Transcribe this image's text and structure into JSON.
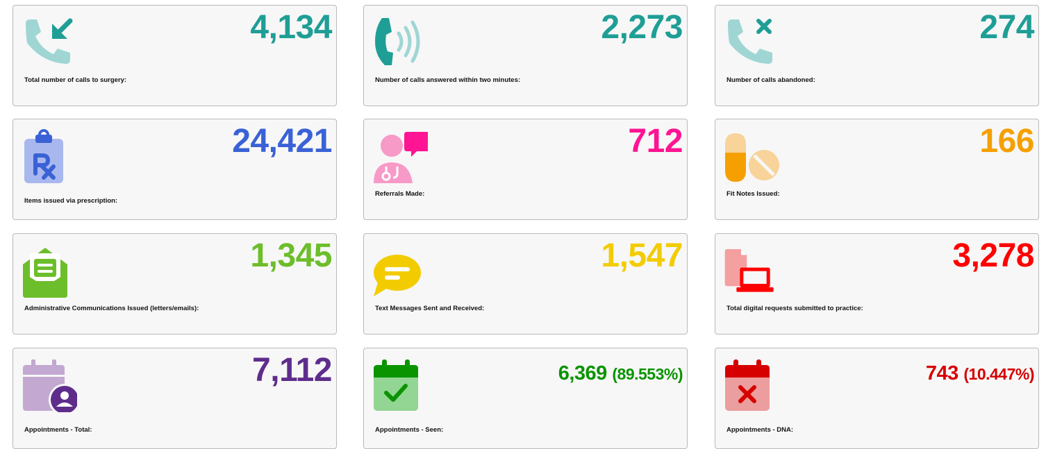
{
  "colors": {
    "teal": "#1f9e96",
    "teal_light": "#9fd6d4",
    "blue": "#3a62d6",
    "blue_light": "#a8b8ee",
    "pink": "#ff1493",
    "pink_light": "#f79ac8",
    "orange": "#f5a000",
    "orange_light": "#f8d39a",
    "green": "#6cbe2a",
    "yellow": "#f2cc00",
    "red": "#ff0000",
    "red_light": "#f4a0a0",
    "purple": "#5e2d8c",
    "purple_light": "#c3a8d1",
    "dark_green": "#0a9400",
    "dark_green_light": "#93d593",
    "dark_red": "#d60000",
    "dark_red_light": "#ec9d9d"
  },
  "cards": [
    {
      "id": "calls-total",
      "icon": "incoming-call-icon",
      "value": "4,134",
      "label": "Total number of calls to surgery:"
    },
    {
      "id": "calls-answered",
      "icon": "phone-ringing-icon",
      "value": "2,273",
      "label": "Number of calls answered within two minutes:"
    },
    {
      "id": "calls-abandoned",
      "icon": "call-abandoned-icon",
      "value": "274",
      "label": "Number of calls abandoned:"
    },
    {
      "id": "prescriptions",
      "icon": "prescription-clipboard-icon",
      "value": "24,421",
      "label": "Items issued via prescription:"
    },
    {
      "id": "referrals",
      "icon": "doctor-chat-icon",
      "value": "712",
      "label": "Referrals Made:"
    },
    {
      "id": "fit-notes",
      "icon": "pills-icon",
      "value": "166",
      "label": "Fit Notes Issued:"
    },
    {
      "id": "admin-comms",
      "icon": "envelope-letter-icon",
      "value": "1,345",
      "label": "Administrative Communications Issued (letters/emails):"
    },
    {
      "id": "text-messages",
      "icon": "speech-bubble-icon",
      "value": "1,547",
      "label": "Text Messages Sent and Received:"
    },
    {
      "id": "digital-requests",
      "icon": "file-laptop-icon",
      "value": "3,278",
      "label": "Total digital requests submitted to practice:"
    },
    {
      "id": "appts-total",
      "icon": "calendar-user-icon",
      "value": "7,112",
      "label": "Appointments - Total:"
    },
    {
      "id": "appts-seen",
      "icon": "calendar-check-icon",
      "value": "6,369",
      "percent": "(89.553%)",
      "label": "Appointments - Seen:"
    },
    {
      "id": "appts-dna",
      "icon": "calendar-x-icon",
      "value": "743",
      "percent": "(10.447%)",
      "label": "Appointments - DNA:"
    }
  ]
}
